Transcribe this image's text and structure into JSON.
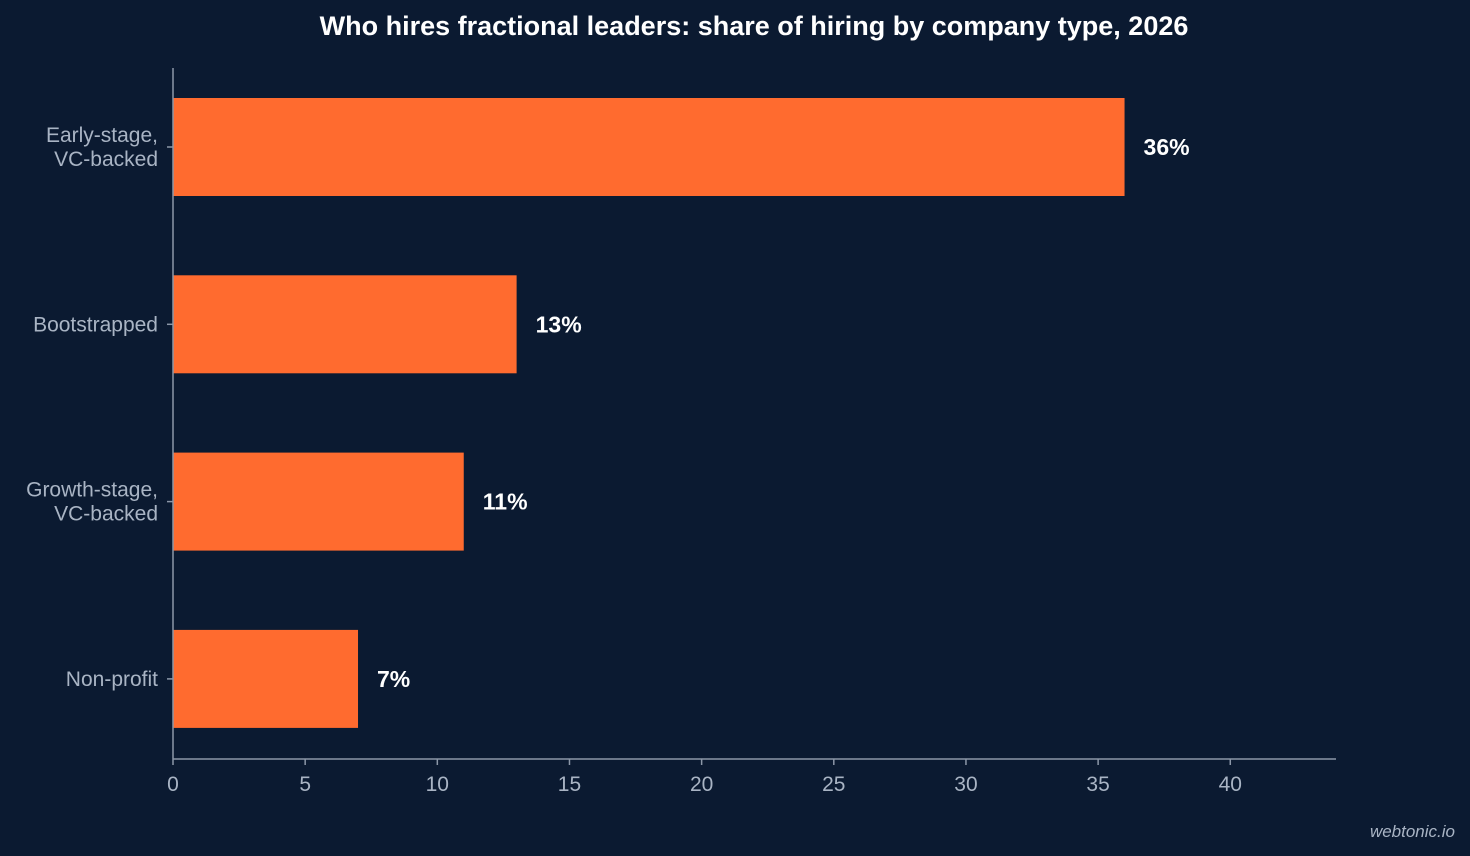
{
  "chart_data": {
    "type": "bar",
    "orientation": "horizontal",
    "title": "Who hires fractional leaders: share of hiring by company type, 2026",
    "categories": [
      [
        "Early-stage,",
        "VC-backed"
      ],
      [
        "Bootstrapped"
      ],
      [
        "Growth-stage,",
        "VC-backed"
      ],
      [
        "Non-profit"
      ]
    ],
    "values": [
      36,
      13,
      11,
      7
    ],
    "data_labels": [
      "36%",
      "13%",
      "11%",
      "7%"
    ],
    "xlabel": "",
    "ylabel": "",
    "xlim": [
      0,
      44
    ],
    "xticks": [
      0,
      5,
      10,
      15,
      20,
      25,
      30,
      35,
      40
    ],
    "xtick_labels": [
      "0",
      "5",
      "10",
      "15",
      "20",
      "25",
      "30",
      "35",
      "40"
    ],
    "grid": false,
    "legend": "none",
    "colors": {
      "background": "#0b1a31",
      "bar": "#ff6b2f",
      "axis": "#8c97a8",
      "text_muted": "#a9b4c4",
      "text_strong": "#ffffff"
    }
  },
  "watermark": "webtonic.io"
}
